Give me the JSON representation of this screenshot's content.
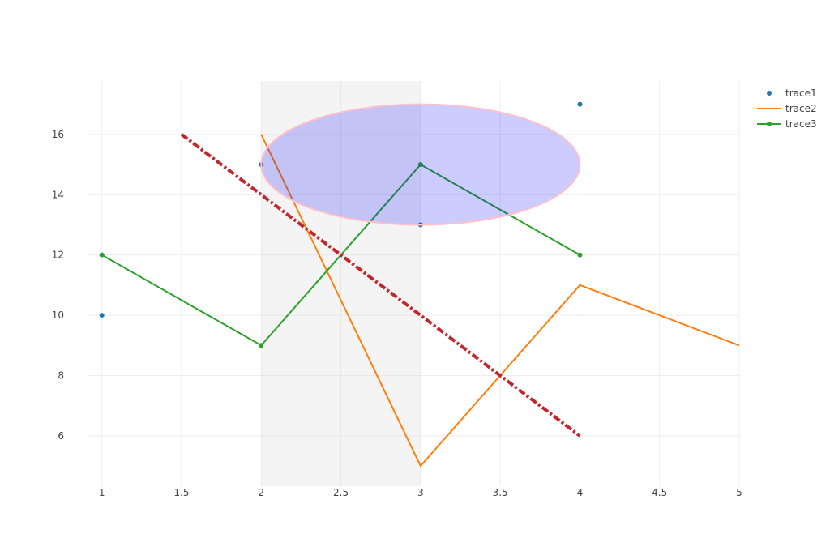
{
  "chart_data": {
    "type": "line",
    "title": "",
    "xlabel": "",
    "ylabel": "",
    "xlim": [
      0.91,
      5.0
    ],
    "ylim": [
      4.33,
      17.77
    ],
    "xticks": [
      1,
      1.5,
      2,
      2.5,
      3,
      3.5,
      4,
      4.5,
      5
    ],
    "xtick_labels": [
      "1",
      "1.5",
      "2",
      "2.5",
      "3",
      "3.5",
      "4",
      "4.5",
      "5"
    ],
    "yticks": [
      6,
      8,
      10,
      12,
      14,
      16
    ],
    "ytick_labels": [
      "6",
      "8",
      "10",
      "12",
      "14",
      "16"
    ],
    "grid": true,
    "legend_position": "top-right",
    "series": [
      {
        "name": "trace1",
        "mode": "markers",
        "color": "#1f77b4",
        "x": [
          1,
          2,
          3,
          4
        ],
        "y": [
          10,
          15,
          13,
          17
        ]
      },
      {
        "name": "trace2",
        "mode": "lines",
        "color": "#ff7f0e",
        "x": [
          2,
          3,
          4,
          5
        ],
        "y": [
          16,
          5,
          11,
          9
        ]
      },
      {
        "name": "trace3",
        "mode": "lines+markers",
        "color": "#2ca02c",
        "x": [
          1,
          2,
          3,
          4
        ],
        "y": [
          12,
          9,
          15,
          12
        ]
      }
    ],
    "shapes": [
      {
        "type": "rect",
        "x0": 2,
        "x1": 3,
        "yref": "paper",
        "fill": "#d3d3d3",
        "opacity": 0.25
      },
      {
        "type": "line",
        "x0": 1.5,
        "y0": 16,
        "x1": 4,
        "y1": 6,
        "color": "#c1272d",
        "dash": "dashdot"
      },
      {
        "type": "ellipse",
        "x0": 2,
        "x1": 4,
        "y0": 13,
        "y1": 17,
        "fill": "#0000ff",
        "fill_opacity": 0.2,
        "line_color": "#ffc0cb"
      }
    ]
  }
}
